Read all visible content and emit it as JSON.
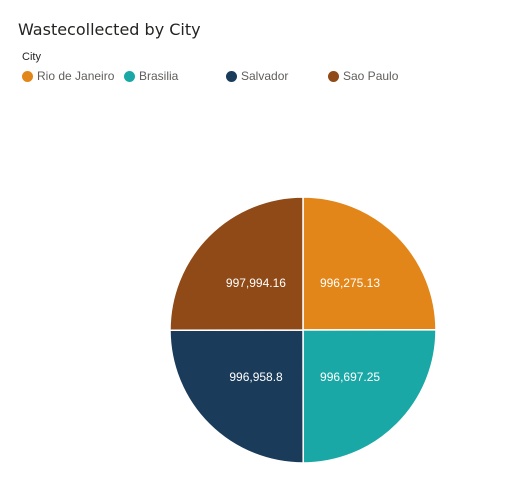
{
  "chart_data": {
    "type": "pie",
    "title": "Wastecollected by City",
    "legend_title": "City",
    "legend_position": "top-left",
    "categories": [
      "Rio de Janeiro",
      "Brasilia",
      "Salvador",
      "Sao Paulo"
    ],
    "values": [
      996275.13,
      996697.25,
      996958.8,
      997994.16
    ],
    "data_labels": [
      "996,275.13",
      "996,697.25",
      "996,958.8",
      "997,994.16"
    ],
    "colors": [
      "#E3861A",
      "#19A8A5",
      "#1A3C5A",
      "#8F4A17"
    ]
  }
}
